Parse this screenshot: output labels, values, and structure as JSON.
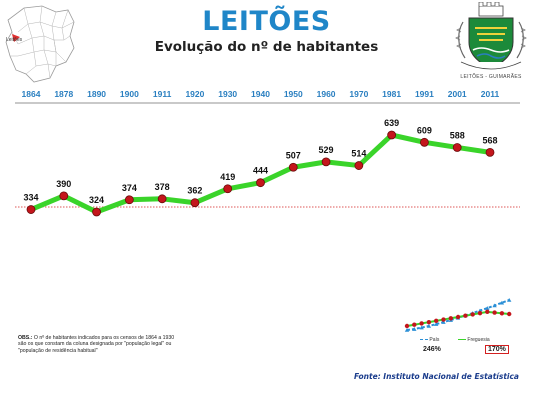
{
  "header": {
    "title": "LEITÕES",
    "subtitle": "Evolução do nº de habitantes"
  },
  "location_map": {
    "label": "Leitões"
  },
  "crest": {
    "motto": "LEITÕES - GUIMARÃES"
  },
  "chart_data": {
    "type": "line",
    "title": "Evolução do nº de habitantes",
    "xlabel": "",
    "ylabel": "",
    "x": [
      "1864",
      "1878",
      "1890",
      "1900",
      "1911",
      "1920",
      "1930",
      "1940",
      "1950",
      "1960",
      "1970",
      "1981",
      "1991",
      "2001",
      "2011"
    ],
    "series": [
      {
        "values": [
          334,
          390,
          324,
          374,
          378,
          362,
          419,
          444,
          507,
          529,
          514,
          639,
          609,
          588,
          568
        ]
      }
    ],
    "reference_line": 334,
    "ylim": [
      280,
      660
    ],
    "grid": false,
    "colors": {
      "line": "#3ad42a",
      "marker": "#c4161c",
      "marker_edge": "#6a0a0a",
      "axis_labels": "#2a7fc0",
      "reference": "#d42020",
      "axis": "#c9c9c9"
    }
  },
  "notes": {
    "obs_label": "OBS.:",
    "obs_text": " O nº de habitantes indicados para os censos de 1864 a 1930 são os que constam da coluna designada por \"população legal\" ou \"população de residência habitual\""
  },
  "comparison": {
    "legend": [
      "País",
      "Freguesia"
    ],
    "country_growth": "246%",
    "parish_growth": "170%",
    "colors": {
      "country": "#2a8fd6",
      "parish": "#3ad42a",
      "parish_marker": "#c4161c"
    }
  },
  "source": "Fonte: Instituto Nacional de Estatística"
}
